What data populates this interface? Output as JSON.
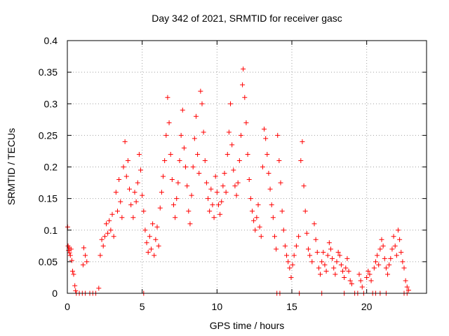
{
  "chart_data": {
    "type": "scatter",
    "title": "Day 342 of 2021, SRMTID for receiver gasc",
    "xlabel": "GPS time / hours",
    "ylabel": "SRMTID / TECUs",
    "xlim": [
      0,
      24
    ],
    "ylim": [
      0,
      0.4
    ],
    "xticks": [
      0,
      5,
      10,
      15,
      20
    ],
    "yticks": [
      0,
      0.05,
      0.1,
      0.15,
      0.2,
      0.25,
      0.3,
      0.35,
      0.4
    ],
    "xtick_labels": [
      "0",
      "5",
      "10",
      "15",
      "20"
    ],
    "ytick_labels": [
      "0",
      "0.05",
      "0.1",
      "0.15",
      "0.2",
      "0.25",
      "0.3",
      "0.35",
      "0.4"
    ],
    "grid": true,
    "marker": "+",
    "series_color": "#ff0000",
    "series": [
      {
        "name": "SRMTID",
        "points": [
          [
            0.02,
            0.105
          ],
          [
            0.05,
            0.075
          ],
          [
            0.08,
            0.068
          ],
          [
            0.12,
            0.072
          ],
          [
            0.15,
            0.064
          ],
          [
            0.2,
            0.06
          ],
          [
            0.25,
            0.07
          ],
          [
            0.3,
            0.052
          ],
          [
            0.35,
            0.035
          ],
          [
            0.42,
            0.03
          ],
          [
            0.5,
            0.012
          ],
          [
            0.55,
            0.004
          ],
          [
            0.6,
            0.0
          ],
          [
            0.8,
            0.0
          ],
          [
            1.0,
            0.0
          ],
          [
            1.2,
            0.0
          ],
          [
            1.5,
            0.0
          ],
          [
            1.7,
            0.0
          ],
          [
            1.9,
            0.0
          ],
          [
            2.1,
            0.008
          ],
          [
            1.1,
            0.072
          ],
          [
            1.2,
            0.06
          ],
          [
            1.3,
            0.05
          ],
          [
            1.05,
            0.045
          ],
          [
            2.2,
            0.06
          ],
          [
            2.3,
            0.085
          ],
          [
            2.4,
            0.075
          ],
          [
            2.5,
            0.09
          ],
          [
            2.6,
            0.11
          ],
          [
            2.7,
            0.095
          ],
          [
            2.8,
            0.115
          ],
          [
            2.9,
            0.1
          ],
          [
            3.0,
            0.125
          ],
          [
            3.1,
            0.09
          ],
          [
            3.25,
            0.16
          ],
          [
            3.35,
            0.13
          ],
          [
            3.45,
            0.18
          ],
          [
            3.55,
            0.145
          ],
          [
            3.65,
            0.12
          ],
          [
            3.75,
            0.2
          ],
          [
            3.85,
            0.24
          ],
          [
            3.95,
            0.185
          ],
          [
            4.05,
            0.21
          ],
          [
            4.15,
            0.165
          ],
          [
            4.25,
            0.14
          ],
          [
            4.4,
            0.12
          ],
          [
            4.5,
            0.16
          ],
          [
            4.6,
            0.145
          ],
          [
            4.7,
            0.175
          ],
          [
            4.8,
            0.22
          ],
          [
            4.9,
            0.195
          ],
          [
            5.0,
            0.155
          ],
          [
            5.1,
            0.13
          ],
          [
            5.2,
            0.1
          ],
          [
            5.3,
            0.08
          ],
          [
            5.4,
            0.065
          ],
          [
            5.5,
            0.09
          ],
          [
            5.6,
            0.07
          ],
          [
            5.7,
            0.11
          ],
          [
            5.8,
            0.06
          ],
          [
            5.9,
            0.085
          ],
          [
            6.0,
            0.105
          ],
          [
            6.1,
            0.075
          ],
          [
            6.2,
            0.135
          ],
          [
            6.3,
            0.16
          ],
          [
            6.4,
            0.185
          ],
          [
            6.5,
            0.21
          ],
          [
            6.6,
            0.25
          ],
          [
            6.7,
            0.31
          ],
          [
            6.8,
            0.27
          ],
          [
            6.9,
            0.22
          ],
          [
            7.0,
            0.18
          ],
          [
            7.1,
            0.14
          ],
          [
            7.2,
            0.12
          ],
          [
            7.3,
            0.15
          ],
          [
            7.4,
            0.175
          ],
          [
            7.5,
            0.21
          ],
          [
            7.6,
            0.25
          ],
          [
            7.7,
            0.29
          ],
          [
            7.8,
            0.23
          ],
          [
            7.9,
            0.2
          ],
          [
            8.0,
            0.17
          ],
          [
            8.1,
            0.13
          ],
          [
            8.2,
            0.11
          ],
          [
            8.3,
            0.155
          ],
          [
            8.4,
            0.2
          ],
          [
            8.5,
            0.245
          ],
          [
            8.6,
            0.28
          ],
          [
            8.7,
            0.22
          ],
          [
            8.8,
            0.19
          ],
          [
            8.9,
            0.32
          ],
          [
            9.0,
            0.3
          ],
          [
            9.1,
            0.255
          ],
          [
            9.2,
            0.21
          ],
          [
            9.3,
            0.175
          ],
          [
            9.4,
            0.15
          ],
          [
            9.5,
            0.13
          ],
          [
            9.6,
            0.165
          ],
          [
            9.7,
            0.14
          ],
          [
            9.8,
            0.12
          ],
          [
            9.9,
            0.185
          ],
          [
            10.0,
            0.16
          ],
          [
            10.1,
            0.14
          ],
          [
            10.2,
            0.125
          ],
          [
            10.3,
            0.145
          ],
          [
            10.4,
            0.17
          ],
          [
            10.5,
            0.19
          ],
          [
            10.6,
            0.16
          ],
          [
            10.7,
            0.22
          ],
          [
            10.8,
            0.255
          ],
          [
            10.9,
            0.3
          ],
          [
            11.0,
            0.235
          ],
          [
            11.1,
            0.195
          ],
          [
            11.2,
            0.17
          ],
          [
            11.3,
            0.155
          ],
          [
            11.4,
            0.175
          ],
          [
            11.5,
            0.21
          ],
          [
            11.6,
            0.25
          ],
          [
            11.7,
            0.33
          ],
          [
            11.75,
            0.355
          ],
          [
            11.85,
            0.31
          ],
          [
            11.95,
            0.27
          ],
          [
            12.05,
            0.22
          ],
          [
            12.15,
            0.18
          ],
          [
            12.25,
            0.15
          ],
          [
            12.35,
            0.13
          ],
          [
            12.45,
            0.115
          ],
          [
            12.55,
            0.1
          ],
          [
            12.65,
            0.12
          ],
          [
            12.75,
            0.14
          ],
          [
            12.85,
            0.105
          ],
          [
            12.95,
            0.09
          ],
          [
            13.05,
            0.2
          ],
          [
            13.15,
            0.26
          ],
          [
            13.25,
            0.245
          ],
          [
            13.35,
            0.22
          ],
          [
            13.45,
            0.19
          ],
          [
            13.55,
            0.165
          ],
          [
            13.65,
            0.14
          ],
          [
            13.75,
            0.12
          ],
          [
            13.85,
            0.09
          ],
          [
            13.95,
            0.07
          ],
          [
            14.05,
            0.25
          ],
          [
            14.15,
            0.21
          ],
          [
            14.25,
            0.175
          ],
          [
            14.35,
            0.13
          ],
          [
            14.45,
            0.1
          ],
          [
            14.55,
            0.075
          ],
          [
            14.65,
            0.06
          ],
          [
            14.75,
            0.05
          ],
          [
            14.85,
            0.04
          ],
          [
            14.95,
            0.025
          ],
          [
            15.05,
            0.045
          ],
          [
            15.15,
            0.06
          ],
          [
            15.3,
            0.075
          ],
          [
            15.45,
            0.09
          ],
          [
            15.6,
            0.21
          ],
          [
            15.7,
            0.24
          ],
          [
            15.8,
            0.17
          ],
          [
            15.9,
            0.13
          ],
          [
            16.0,
            0.095
          ],
          [
            16.1,
            0.07
          ],
          [
            16.2,
            0.06
          ],
          [
            16.35,
            0.05
          ],
          [
            16.5,
            0.11
          ],
          [
            16.6,
            0.085
          ],
          [
            16.7,
            0.065
          ],
          [
            16.8,
            0.04
          ],
          [
            16.9,
            0.03
          ],
          [
            17.0,
            0.05
          ],
          [
            17.1,
            0.065
          ],
          [
            17.2,
            0.045
          ],
          [
            17.3,
            0.035
          ],
          [
            17.4,
            0.06
          ],
          [
            17.5,
            0.08
          ],
          [
            17.6,
            0.07
          ],
          [
            17.7,
            0.055
          ],
          [
            17.8,
            0.04
          ],
          [
            17.9,
            0.03
          ],
          [
            18.0,
            0.05
          ],
          [
            18.1,
            0.065
          ],
          [
            18.2,
            0.06
          ],
          [
            18.3,
            0.045
          ],
          [
            18.4,
            0.035
          ],
          [
            18.5,
            0.025
          ],
          [
            18.6,
            0.04
          ],
          [
            18.7,
            0.055
          ],
          [
            18.8,
            0.035
          ],
          [
            18.9,
            0.02
          ],
          [
            19.0,
            0.015
          ],
          [
            19.5,
            0.03
          ],
          [
            19.6,
            0.02
          ],
          [
            19.7,
            0.01
          ],
          [
            20.0,
            0.025
          ],
          [
            20.1,
            0.035
          ],
          [
            20.2,
            0.03
          ],
          [
            20.3,
            0.02
          ],
          [
            20.5,
            0.04
          ],
          [
            20.6,
            0.05
          ],
          [
            20.7,
            0.06
          ],
          [
            20.8,
            0.045
          ],
          [
            20.9,
            0.07
          ],
          [
            21.0,
            0.085
          ],
          [
            21.1,
            0.075
          ],
          [
            21.2,
            0.055
          ],
          [
            21.3,
            0.04
          ],
          [
            21.4,
            0.03
          ],
          [
            21.5,
            0.045
          ],
          [
            21.6,
            0.055
          ],
          [
            21.7,
            0.07
          ],
          [
            21.8,
            0.09
          ],
          [
            21.9,
            0.075
          ],
          [
            22.0,
            0.06
          ],
          [
            22.1,
            0.1
          ],
          [
            22.2,
            0.085
          ],
          [
            22.3,
            0.065
          ],
          [
            22.4,
            0.05
          ],
          [
            22.5,
            0.04
          ],
          [
            22.6,
            0.02
          ],
          [
            22.7,
            0.01
          ],
          [
            22.8,
            0.005
          ],
          [
            5.1,
            0.0
          ],
          [
            14.0,
            0.0
          ],
          [
            14.2,
            0.0
          ],
          [
            15.5,
            0.0
          ],
          [
            17.0,
            0.0
          ],
          [
            18.5,
            0.0
          ],
          [
            19.2,
            0.0
          ],
          [
            19.4,
            0.0
          ],
          [
            19.8,
            0.0
          ],
          [
            20.4,
            0.0
          ],
          [
            20.6,
            0.0
          ],
          [
            20.9,
            0.0
          ],
          [
            21.3,
            0.0
          ],
          [
            22.5,
            0.0
          ],
          [
            22.7,
            0.0
          ]
        ]
      }
    ]
  }
}
